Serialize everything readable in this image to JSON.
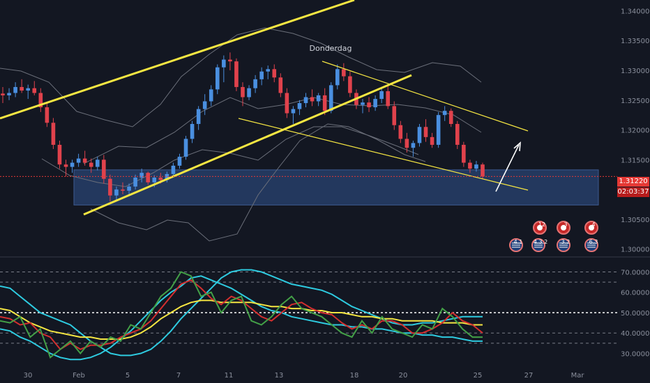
{
  "chart_data": [
    {
      "type": "candlestick",
      "title": "",
      "annotation": "Donderdag",
      "price_axis_ticks": [
        "1.34000",
        "1.33500",
        "1.33000",
        "1.32500",
        "1.32000",
        "1.31500",
        "1.31000",
        "1.30500",
        "1.30000"
      ],
      "time_axis_ticks": [
        "30",
        "Feb",
        "5",
        "7",
        "11",
        "13",
        "18",
        "20",
        "25",
        "27",
        "Mar"
      ],
      "last_price": "1.31220",
      "countdown": "02:03:37",
      "ylim": [
        1.2988,
        1.3418
      ],
      "colors": {
        "bull": "#4a8fe0",
        "bear": "#e0424c",
        "background": "#131722",
        "trendline": "#f5e642",
        "zone": "#2c4a80"
      },
      "zone": [
        1.3074,
        1.3133
      ],
      "candles_ohlc": [
        [
          1.3261,
          1.3272,
          1.3245,
          1.3258
        ],
        [
          1.3258,
          1.327,
          1.325,
          1.3262
        ],
        [
          1.3262,
          1.328,
          1.3255,
          1.3272
        ],
        [
          1.3272,
          1.3285,
          1.3262,
          1.3266
        ],
        [
          1.3266,
          1.3276,
          1.3252,
          1.327
        ],
        [
          1.327,
          1.3282,
          1.3258,
          1.3262
        ],
        [
          1.3262,
          1.327,
          1.323,
          1.3238
        ],
        [
          1.3238,
          1.3245,
          1.3205,
          1.3212
        ],
        [
          1.3212,
          1.322,
          1.3168,
          1.3175
        ],
        [
          1.3175,
          1.3182,
          1.3135,
          1.3142
        ],
        [
          1.3142,
          1.315,
          1.3122,
          1.3138
        ],
        [
          1.3138,
          1.315,
          1.3128,
          1.3145
        ],
        [
          1.3145,
          1.316,
          1.3138,
          1.3152
        ],
        [
          1.3152,
          1.3165,
          1.314,
          1.3145
        ],
        [
          1.3145,
          1.3152,
          1.3128,
          1.3138
        ],
        [
          1.3138,
          1.3155,
          1.3132,
          1.315
        ],
        [
          1.315,
          1.3158,
          1.311,
          1.3118
        ],
        [
          1.3118,
          1.3125,
          1.308,
          1.309
        ],
        [
          1.309,
          1.3105,
          1.3082,
          1.31
        ],
        [
          1.31,
          1.3112,
          1.3092,
          1.3098
        ],
        [
          1.3098,
          1.311,
          1.309,
          1.3105
        ],
        [
          1.3105,
          1.3125,
          1.31,
          1.312
        ],
        [
          1.312,
          1.3135,
          1.3112,
          1.3128
        ],
        [
          1.3128,
          1.313,
          1.3108,
          1.3112
        ],
        [
          1.3112,
          1.3124,
          1.3104,
          1.312
        ],
        [
          1.312,
          1.3128,
          1.311,
          1.3116
        ],
        [
          1.3116,
          1.313,
          1.3112,
          1.3126
        ],
        [
          1.3126,
          1.3145,
          1.312,
          1.314
        ],
        [
          1.314,
          1.316,
          1.3135,
          1.3155
        ],
        [
          1.3155,
          1.319,
          1.315,
          1.3185
        ],
        [
          1.3185,
          1.3215,
          1.3178,
          1.321
        ],
        [
          1.321,
          1.324,
          1.32,
          1.3235
        ],
        [
          1.3235,
          1.326,
          1.3225,
          1.3248
        ],
        [
          1.3248,
          1.3275,
          1.324,
          1.3268
        ],
        [
          1.3268,
          1.331,
          1.326,
          1.3305
        ],
        [
          1.3305,
          1.3325,
          1.328,
          1.3318
        ],
        [
          1.3318,
          1.333,
          1.33,
          1.3315
        ],
        [
          1.3315,
          1.332,
          1.3265,
          1.3272
        ],
        [
          1.3272,
          1.328,
          1.324,
          1.3255
        ],
        [
          1.3255,
          1.3275,
          1.325,
          1.327
        ],
        [
          1.327,
          1.3292,
          1.3262,
          1.3285
        ],
        [
          1.3285,
          1.3305,
          1.3275,
          1.3298
        ],
        [
          1.3298,
          1.3308,
          1.3285,
          1.3302
        ],
        [
          1.3302,
          1.331,
          1.328,
          1.3288
        ],
        [
          1.3288,
          1.3295,
          1.3255,
          1.3262
        ],
        [
          1.3262,
          1.327,
          1.322,
          1.3228
        ],
        [
          1.3228,
          1.324,
          1.321,
          1.3235
        ],
        [
          1.3235,
          1.325,
          1.3225,
          1.3245
        ],
        [
          1.3245,
          1.3262,
          1.3238,
          1.3255
        ],
        [
          1.3255,
          1.3268,
          1.324,
          1.3248
        ],
        [
          1.3248,
          1.3262,
          1.324,
          1.3258
        ],
        [
          1.3258,
          1.327,
          1.3225,
          1.3232
        ],
        [
          1.3232,
          1.328,
          1.3228,
          1.3275
        ],
        [
          1.3275,
          1.331,
          1.3268,
          1.3302
        ],
        [
          1.3302,
          1.3312,
          1.3282,
          1.329
        ],
        [
          1.329,
          1.3298,
          1.3255,
          1.3262
        ],
        [
          1.3262,
          1.3268,
          1.3235,
          1.3242
        ],
        [
          1.3242,
          1.3252,
          1.3228,
          1.3246
        ],
        [
          1.3246,
          1.3255,
          1.323,
          1.3238
        ],
        [
          1.3238,
          1.3258,
          1.3232,
          1.3252
        ],
        [
          1.3252,
          1.327,
          1.3245,
          1.3265
        ],
        [
          1.3265,
          1.3275,
          1.3235,
          1.324
        ],
        [
          1.324,
          1.3248,
          1.32,
          1.3208
        ],
        [
          1.3208,
          1.3215,
          1.3178,
          1.3185
        ],
        [
          1.3185,
          1.3195,
          1.3162,
          1.317
        ],
        [
          1.317,
          1.3182,
          1.3155,
          1.3178
        ],
        [
          1.3178,
          1.321,
          1.3172,
          1.3205
        ],
        [
          1.3205,
          1.3218,
          1.318,
          1.3188
        ],
        [
          1.3188,
          1.3195,
          1.317,
          1.3175
        ],
        [
          1.3175,
          1.323,
          1.317,
          1.3225
        ],
        [
          1.3225,
          1.324,
          1.3215,
          1.3232
        ],
        [
          1.3232,
          1.3236,
          1.3205,
          1.321
        ],
        [
          1.321,
          1.3215,
          1.3168,
          1.3175
        ],
        [
          1.3175,
          1.318,
          1.3138,
          1.3145
        ],
        [
          1.3145,
          1.315,
          1.3128,
          1.3135
        ],
        [
          1.3135,
          1.3148,
          1.313,
          1.3142
        ],
        [
          1.3142,
          1.3145,
          1.3118,
          1.3122
        ]
      ]
    },
    {
      "type": "line",
      "name": "oscillator",
      "y_axis_ticks": [
        "70.0000",
        "60.0000",
        "50.0000",
        "40.0000",
        "30.0000"
      ],
      "ylim": [
        24,
        77
      ],
      "levels": [
        70,
        65,
        50,
        40,
        35
      ],
      "series": [
        {
          "color": "#2ecbe0",
          "values": [
            63,
            62,
            58,
            54,
            50,
            48,
            46,
            44,
            40,
            36,
            33,
            30,
            29,
            29,
            30,
            32,
            36,
            41,
            47,
            52,
            57,
            62,
            67,
            70,
            71,
            71,
            70,
            68,
            66,
            64,
            63,
            62,
            61,
            59,
            56,
            53,
            51,
            49,
            47,
            45,
            44,
            44,
            45,
            45,
            46,
            47,
            48,
            48,
            48
          ]
        },
        {
          "color": "#2ecbe0",
          "values": [
            42,
            41,
            38,
            36,
            33,
            30,
            28,
            27,
            27,
            28,
            30,
            33,
            37,
            41,
            46,
            51,
            56,
            60,
            63,
            67,
            68,
            66,
            64,
            62,
            59,
            56,
            53,
            51,
            50,
            48,
            47,
            46,
            45,
            44,
            44,
            43,
            43,
            42,
            42,
            41,
            40,
            40,
            39,
            39,
            38,
            38,
            37,
            36,
            36
          ]
        },
        {
          "color": "#f5e642",
          "values": [
            52,
            51,
            48,
            45,
            43,
            41,
            40,
            39,
            38,
            38,
            37,
            37,
            37,
            38,
            40,
            43,
            47,
            50,
            53,
            55,
            56,
            56,
            55,
            55,
            55,
            55,
            54,
            53,
            53,
            52,
            52,
            51,
            51,
            50,
            50,
            49,
            48,
            48,
            47,
            47,
            46,
            46,
            46,
            46,
            45,
            45,
            45,
            44,
            44
          ]
        },
        {
          "color": "#d32f2f",
          "values": [
            48,
            47,
            44,
            45,
            40,
            38,
            32,
            35,
            32,
            34,
            34,
            35,
            38,
            40,
            42,
            46,
            52,
            58,
            64,
            66,
            62,
            57,
            54,
            58,
            56,
            52,
            48,
            46,
            50,
            54,
            55,
            52,
            50,
            49,
            45,
            42,
            44,
            42,
            46,
            46,
            44,
            40,
            40,
            42,
            45,
            50,
            46,
            44,
            40
          ]
        },
        {
          "color": "#43a047",
          "values": [
            46,
            45,
            48,
            38,
            42,
            28,
            32,
            36,
            30,
            36,
            33,
            38,
            36,
            44,
            42,
            50,
            58,
            62,
            70,
            68,
            58,
            60,
            50,
            56,
            58,
            46,
            44,
            48,
            54,
            58,
            52,
            50,
            48,
            44,
            40,
            38,
            46,
            40,
            48,
            42,
            40,
            38,
            44,
            42,
            52,
            48,
            42,
            38,
            38
          ]
        }
      ]
    }
  ],
  "events": [
    {
      "label": "4.1",
      "flag": "usa"
    },
    {
      "label": "4.3.2",
      "flag": "usa"
    },
    {
      "label": "3.2",
      "flag": "usa"
    },
    {
      "label": "6.3",
      "flag": "usa"
    },
    {
      "label": "12",
      "flag": "canada"
    },
    {
      "label": "3",
      "flag": "canada"
    },
    {
      "label": "4",
      "flag": "canada"
    }
  ],
  "icons": [
    "arrow-up-right-icon",
    "usa-flag-icon",
    "canada-flag-icon"
  ]
}
